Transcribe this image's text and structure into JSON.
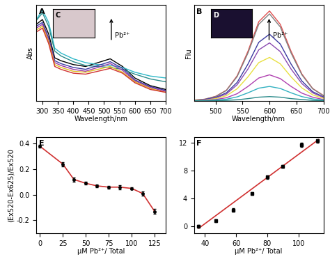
{
  "chart_data": [
    {
      "type": "line",
      "title": "A",
      "y_label": "Abs",
      "x_label": "Wavelength/nm",
      "arrow_text": "Pb²⁺",
      "inset_label": "C",
      "tick_labels": "x",
      "xlim": [
        280,
        700
      ],
      "xticks": [
        300,
        350,
        400,
        450,
        500,
        550,
        600,
        650,
        700
      ],
      "ylim": [
        0,
        1
      ],
      "yticks": [],
      "x": [
        280,
        300,
        320,
        340,
        360,
        380,
        400,
        440,
        480,
        520,
        560,
        600,
        650,
        700
      ],
      "series": [
        {
          "color": "#000000",
          "values": [
            0.8,
            0.85,
            0.7,
            0.45,
            0.42,
            0.4,
            0.38,
            0.36,
            0.4,
            0.44,
            0.36,
            0.24,
            0.16,
            0.12
          ]
        },
        {
          "color": "#2fb8c8",
          "values": [
            0.85,
            0.95,
            0.82,
            0.55,
            0.5,
            0.47,
            0.44,
            0.4,
            0.38,
            0.37,
            0.35,
            0.3,
            0.26,
            0.24
          ]
        },
        {
          "color": "#2a8a8a",
          "values": [
            0.84,
            0.92,
            0.78,
            0.52,
            0.47,
            0.44,
            0.41,
            0.37,
            0.36,
            0.35,
            0.33,
            0.28,
            0.23,
            0.2
          ]
        },
        {
          "color": "#3a3aa0",
          "values": [
            0.78,
            0.82,
            0.66,
            0.42,
            0.39,
            0.37,
            0.35,
            0.33,
            0.37,
            0.41,
            0.34,
            0.22,
            0.15,
            0.11
          ]
        },
        {
          "color": "#9a3aa8",
          "values": [
            0.76,
            0.8,
            0.64,
            0.4,
            0.37,
            0.35,
            0.33,
            0.31,
            0.35,
            0.39,
            0.32,
            0.21,
            0.14,
            0.1
          ]
        },
        {
          "color": "#e0c020",
          "values": [
            0.74,
            0.78,
            0.62,
            0.38,
            0.35,
            0.33,
            0.31,
            0.3,
            0.33,
            0.36,
            0.3,
            0.2,
            0.13,
            0.09
          ]
        },
        {
          "color": "#d03030",
          "values": [
            0.72,
            0.76,
            0.6,
            0.36,
            0.33,
            0.31,
            0.29,
            0.28,
            0.31,
            0.34,
            0.29,
            0.19,
            0.12,
            0.09
          ]
        }
      ]
    },
    {
      "type": "line",
      "title": "B",
      "y_label": "Flu",
      "x_label": "Wavelength/nm",
      "arrow_text": "Pb²⁺",
      "inset_label": "D",
      "tick_labels": "x",
      "xlim": [
        460,
        700
      ],
      "xticks": [
        500,
        550,
        600,
        650,
        700
      ],
      "ylim": [
        0,
        33
      ],
      "yticks": [],
      "x": [
        460,
        480,
        500,
        520,
        540,
        560,
        580,
        600,
        620,
        640,
        660,
        680,
        700
      ],
      "series": [
        {
          "color": "#e05050",
          "values": [
            0.3,
            0.6,
            1.6,
            3.7,
            8.7,
            17.1,
            27.3,
            31,
            26.4,
            17.1,
            9.3,
            4.3,
            1.9
          ]
        },
        {
          "color": "#808080",
          "values": [
            0.3,
            0.6,
            1.5,
            3.6,
            8.4,
            16.5,
            26.4,
            30,
            25.5,
            16.5,
            9,
            4.2,
            1.8
          ]
        },
        {
          "color": "#3a3aa0",
          "values": [
            0.2,
            0.5,
            1.2,
            2.8,
            6.4,
            12.7,
            20.2,
            23,
            19.6,
            12.7,
            6.9,
            3.2,
            1.4
          ]
        },
        {
          "color": "#8a4ab0",
          "values": [
            0.2,
            0.4,
            1,
            2.4,
            5.6,
            11,
            17.6,
            20,
            17,
            11,
            6,
            2.8,
            1.2
          ]
        },
        {
          "color": "#e8e040",
          "values": [
            0.2,
            0.3,
            0.8,
            1.8,
            4.2,
            8.3,
            13.2,
            15,
            12.8,
            8.3,
            4.5,
            2.1,
            0.9
          ]
        },
        {
          "color": "#b040b0",
          "values": [
            0.1,
            0.2,
            0.5,
            1.1,
            2.5,
            5,
            7.9,
            9,
            7.7,
            5,
            2.7,
            1.3,
            0.5
          ]
        },
        {
          "color": "#30b0c0",
          "values": [
            0.1,
            0.1,
            0.3,
            0.6,
            1.4,
            2.8,
            4.4,
            5,
            4.3,
            2.8,
            1.5,
            0.7,
            0.3
          ]
        },
        {
          "color": "#2a8a8a",
          "values": [
            0,
            0,
            0.1,
            0.2,
            0.4,
            0.8,
            1.3,
            1.5,
            1.3,
            0.8,
            0.5,
            0.2,
            0.1
          ]
        }
      ]
    },
    {
      "type": "line",
      "title": "E",
      "y_label": "(Ex520-Ex625)/Ex520",
      "x_label": "μM Pb²⁺/ Total",
      "xlim": [
        -4,
        137
      ],
      "xticks": [
        0,
        25,
        50,
        75,
        100,
        125
      ],
      "ylim": [
        -0.3,
        0.45
      ],
      "yticks": [
        -0.2,
        0.0,
        0.2,
        0.4
      ],
      "x": [
        0,
        25,
        37,
        50,
        62,
        75,
        87,
        100,
        112,
        125
      ],
      "values": [
        0.38,
        0.24,
        0.12,
        0.09,
        0.07,
        0.06,
        0.06,
        0.05,
        0.01,
        -0.13
      ],
      "errors": [
        0.01,
        0.015,
        0.015,
        0.01,
        0.01,
        0.01,
        0.015,
        0.01,
        0.015,
        0.02
      ],
      "color": "#d03030",
      "marker": "o",
      "line_style": "solid"
    },
    {
      "type": "scatter",
      "title": "F",
      "x_label": "μM Pb²⁺/ Total",
      "xlim": [
        33,
        116
      ],
      "xticks": [
        40,
        60,
        80,
        100
      ],
      "ylim": [
        -1,
        12.8
      ],
      "yticks": [
        0,
        4,
        8,
        12
      ],
      "x": [
        36,
        47,
        58,
        70,
        80,
        90,
        102,
        112
      ],
      "values": [
        0,
        0.8,
        2.3,
        4.7,
        7.1,
        8.6,
        11.7,
        12.3
      ],
      "errors": [
        0.2,
        0.2,
        0.25,
        0.2,
        0.25,
        0.2,
        0.3,
        0.25
      ],
      "color": "#000000",
      "marker": "s",
      "fit": {
        "x": [
          36,
          113
        ],
        "values": [
          -0.3,
          12.5
        ],
        "color": "#d03030"
      }
    }
  ]
}
